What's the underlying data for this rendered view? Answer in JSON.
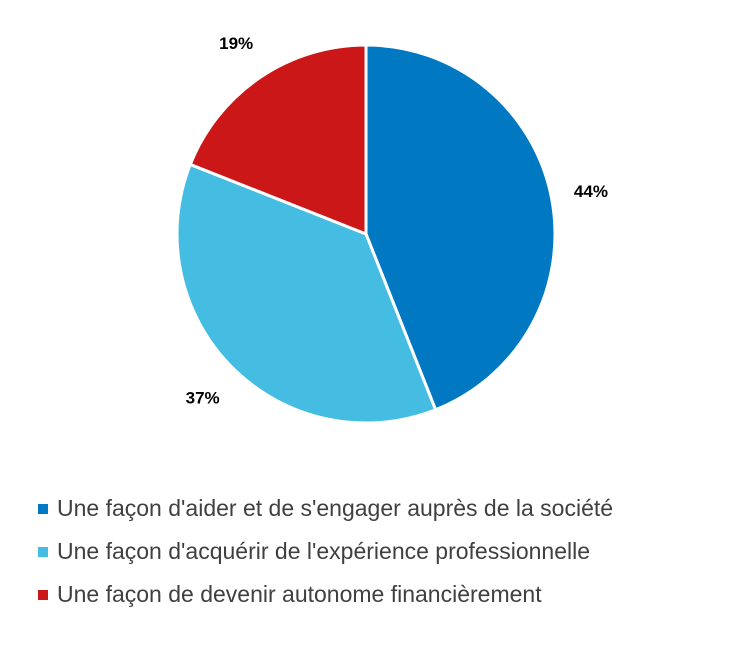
{
  "chart_data": {
    "type": "pie",
    "slices": [
      {
        "label": "Une façon d'aider et de s'engager auprès de la société",
        "value": 44,
        "value_label": "44%",
        "color": "#0079C2"
      },
      {
        "label": "Une façon d'acquérir de l'expérience professionnelle",
        "value": 37,
        "value_label": "37%",
        "color": "#45BDE2"
      },
      {
        "label": "Une façon de devenir autonome financièrement",
        "value": 19,
        "value_label": "19%",
        "color": "#CC1719"
      }
    ],
    "legend_position": "bottom"
  }
}
